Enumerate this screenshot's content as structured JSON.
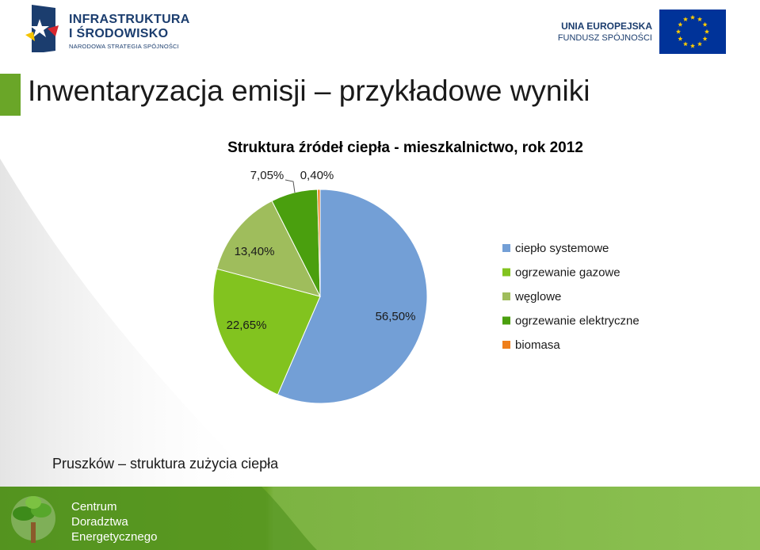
{
  "header": {
    "left_logo": {
      "line1": "INFRASTRUKTURA",
      "line2": "I ŚRODOWISKO",
      "line3": "NARODOWA STRATEGIA SPÓJNOŚCI"
    },
    "right_logo": {
      "line1": "UNIA EUROPEJSKA",
      "line2": "FUNDUSZ SPÓJNOŚCI"
    }
  },
  "page_title": "Inwentaryzacja emisji – przykładowe wyniki",
  "subtitle": "Pruszków – struktura zużycia ciepła",
  "footer": {
    "line1": "Centrum",
    "line2": "Doradztwa",
    "line3": "Energetycznego"
  },
  "colors": {
    "accent_green": "#6aa628",
    "footer_green": "#6aa628"
  },
  "chart_data": {
    "type": "pie",
    "title": "Struktura źródeł ciepła - mieszkalnictwo, rok 2012",
    "legend_position": "right",
    "slices": [
      {
        "name": "ciepło systemowe",
        "value": 56.5,
        "label": "56,50%",
        "color": "#739fd6"
      },
      {
        "name": "ogrzewanie gazowe",
        "value": 22.65,
        "label": "22,65%",
        "color": "#82c31f"
      },
      {
        "name": "węglowe",
        "value": 13.4,
        "label": "13,40%",
        "color": "#9fbd5c"
      },
      {
        "name": "ogrzewanie elektryczne",
        "value": 7.05,
        "label": "7,05%",
        "color": "#4a9f0e"
      },
      {
        "name": "biomasa",
        "value": 0.4,
        "label": "0,40%",
        "color": "#ef7f1a"
      }
    ]
  }
}
